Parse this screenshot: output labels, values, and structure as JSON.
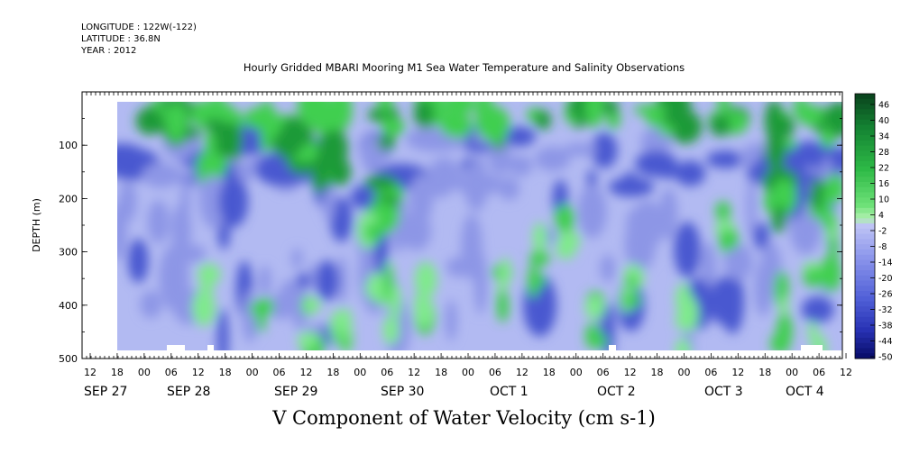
{
  "header": {
    "longitude": "LONGITUDE : 122W(-122)",
    "latitude": "LATITUDE : 36.8N",
    "year": "YEAR : 2012"
  },
  "chart_data": {
    "type": "heatmap",
    "title": "Hourly Gridded MBARI Mooring M1 Sea Water Temperature and Salinity Observations",
    "bottom_title": "V Component of Water Velocity (cm s-1)",
    "ylabel": "DEPTH (m)",
    "y_ticks": [
      100,
      200,
      300,
      400,
      500
    ],
    "ylim": [
      500,
      0
    ],
    "x_hour_ticks": [
      "12",
      "18",
      "00",
      "06",
      "12",
      "18",
      "00",
      "06",
      "12",
      "18",
      "00",
      "06",
      "12",
      "18",
      "00",
      "06",
      "12",
      "18",
      "00",
      "06",
      "12",
      "18",
      "00",
      "06",
      "12",
      "18",
      "00",
      "06",
      "12"
    ],
    "x_date_labels": [
      "SEP 27",
      "SEP 28",
      "SEP 29",
      "SEP 30",
      "OCT  1",
      "OCT  2",
      "OCT  3",
      "OCT  4"
    ],
    "colorbar_levels": [
      46,
      40,
      34,
      28,
      22,
      16,
      10,
      4,
      -2,
      -8,
      -14,
      -20,
      -26,
      -32,
      -38,
      -44,
      -50
    ],
    "colors": {
      "strong_positive": "#1e9a38",
      "positive": "#3fcf50",
      "weak_positive": "#7fea8c",
      "near_zero": "#b2baf2",
      "negative": "#8d96e6",
      "strong_negative": "#4a58d0"
    },
    "grid": false
  }
}
